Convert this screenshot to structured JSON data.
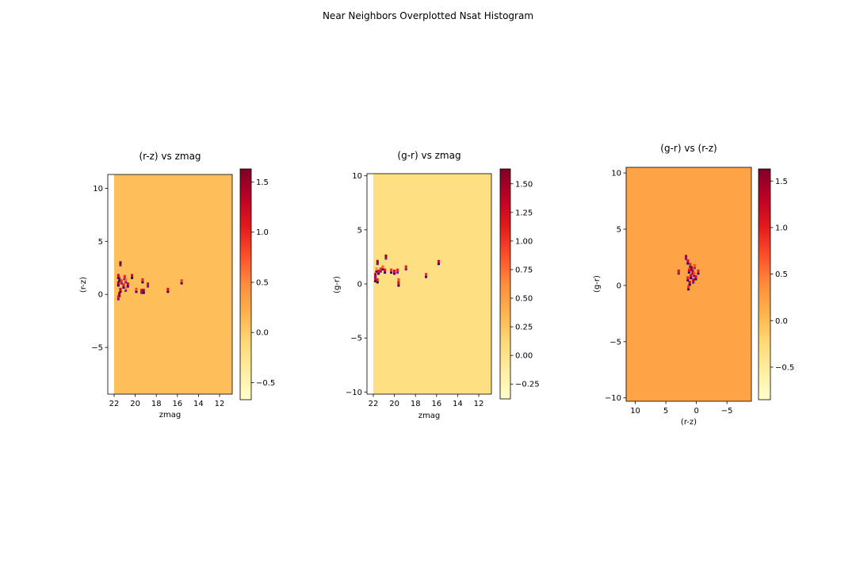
{
  "figure": {
    "suptitle": "Near Neighbors Overplotted Nsat Histogram"
  },
  "colors": {
    "cmap_YlOrRd": [
      "#ffffcc",
      "#ffeda0",
      "#fed976",
      "#feb24c",
      "#fd8d3c",
      "#fc4e2a",
      "#e31a1c",
      "#bd0026",
      "#800026"
    ],
    "point_dark": "#2b0a6e",
    "point_mid": "#6a1fa8",
    "axis": "#000000"
  },
  "chart_data": [
    {
      "type": "heatmap",
      "title": "(r-z) vs zmag",
      "xlabel": "zmag",
      "ylabel": "(r-z)",
      "xlim": [
        22.6,
        10.8
      ],
      "ylim": [
        -9.4,
        11.3
      ],
      "xticks": [
        22,
        20,
        18,
        16,
        14,
        12
      ],
      "yticks": [
        -5,
        0,
        5,
        10
      ],
      "background_value": 0.1,
      "empty_strip": [
        22.6,
        22.0
      ],
      "colorbar": {
        "min": -0.67,
        "max": 1.63,
        "ticks": [
          -0.5,
          0.0,
          0.5,
          1.0,
          1.5
        ]
      },
      "points": [
        {
          "x": 21.4,
          "y": 2.9,
          "v": 1.6
        },
        {
          "x": 21.6,
          "y": 1.7,
          "v": 1.2
        },
        {
          "x": 21.5,
          "y": 1.4,
          "v": 1.5
        },
        {
          "x": 21.3,
          "y": 1.2,
          "v": 0.9
        },
        {
          "x": 21.6,
          "y": 1.0,
          "v": 1.4
        },
        {
          "x": 21.0,
          "y": 1.6,
          "v": 1.0
        },
        {
          "x": 20.9,
          "y": 1.3,
          "v": 0.7
        },
        {
          "x": 21.1,
          "y": 0.8,
          "v": 1.1
        },
        {
          "x": 20.7,
          "y": 0.9,
          "v": 1.3
        },
        {
          "x": 20.9,
          "y": 0.5,
          "v": 0.6
        },
        {
          "x": 21.4,
          "y": 0.4,
          "v": 1.2
        },
        {
          "x": 21.5,
          "y": 0.0,
          "v": 1.5
        },
        {
          "x": 21.6,
          "y": -0.3,
          "v": 1.1
        },
        {
          "x": 20.3,
          "y": 1.7,
          "v": 1.3
        },
        {
          "x": 19.9,
          "y": 0.4,
          "v": 0.8
        },
        {
          "x": 19.4,
          "y": 0.3,
          "v": 1.2
        },
        {
          "x": 19.2,
          "y": 0.3,
          "v": 1.4
        },
        {
          "x": 19.3,
          "y": 1.3,
          "v": 1.0
        },
        {
          "x": 18.8,
          "y": 0.9,
          "v": 1.2
        },
        {
          "x": 16.9,
          "y": 0.4,
          "v": 1.1
        },
        {
          "x": 15.6,
          "y": 1.2,
          "v": 0.9
        }
      ]
    },
    {
      "type": "heatmap",
      "title": "(g-r) vs zmag",
      "xlabel": "zmag",
      "ylabel": "(g-r)",
      "xlim": [
        22.6,
        10.8
      ],
      "ylim": [
        -10.2,
        10.2
      ],
      "xticks": [
        22,
        20,
        18,
        16,
        14,
        12
      ],
      "yticks": [
        -10,
        -5,
        0,
        5,
        10
      ],
      "background_value": 0.05,
      "empty_strip": [
        22.6,
        22.0
      ],
      "colorbar": {
        "min": -0.38,
        "max": 1.63,
        "ticks": [
          -0.25,
          0.0,
          0.25,
          0.5,
          0.75,
          1.0,
          1.25,
          1.5
        ]
      },
      "points": [
        {
          "x": 21.6,
          "y": 2.0,
          "v": 1.5
        },
        {
          "x": 21.7,
          "y": 1.3,
          "v": 0.6
        },
        {
          "x": 21.5,
          "y": 1.1,
          "v": 1.2
        },
        {
          "x": 21.8,
          "y": 0.8,
          "v": 1.4
        },
        {
          "x": 21.8,
          "y": 0.4,
          "v": 1.3
        },
        {
          "x": 21.6,
          "y": 0.3,
          "v": 1.1
        },
        {
          "x": 21.3,
          "y": 1.3,
          "v": 1.0
        },
        {
          "x": 21.1,
          "y": 1.5,
          "v": 0.8
        },
        {
          "x": 20.9,
          "y": 1.2,
          "v": 1.2
        },
        {
          "x": 20.8,
          "y": 2.5,
          "v": 1.5
        },
        {
          "x": 20.3,
          "y": 1.2,
          "v": 1.0
        },
        {
          "x": 20.0,
          "y": 1.1,
          "v": 1.3
        },
        {
          "x": 19.7,
          "y": 1.2,
          "v": 1.1
        },
        {
          "x": 19.6,
          "y": 0.3,
          "v": 0.9
        },
        {
          "x": 19.6,
          "y": 0.0,
          "v": 1.2
        },
        {
          "x": 18.9,
          "y": 1.5,
          "v": 1.1
        },
        {
          "x": 17.0,
          "y": 0.8,
          "v": 1.0
        },
        {
          "x": 15.8,
          "y": 2.0,
          "v": 1.3
        }
      ]
    },
    {
      "type": "heatmap",
      "title": "(g-r) vs (r-z)",
      "xlabel": "(r-z)",
      "ylabel": "(g-r)",
      "xlim": [
        11.5,
        -9.0
      ],
      "ylim": [
        -10.3,
        10.5
      ],
      "xticks": [
        10,
        5,
        0,
        -5
      ],
      "yticks": [
        -10,
        -5,
        0,
        5,
        10
      ],
      "background_value": 0.2,
      "empty_strip": null,
      "colorbar": {
        "min": -0.85,
        "max": 1.63,
        "ticks": [
          -0.5,
          0.0,
          0.5,
          1.0,
          1.5
        ]
      },
      "points": [
        {
          "x": 1.7,
          "y": 2.5,
          "v": 1.4
        },
        {
          "x": 1.4,
          "y": 2.1,
          "v": 1.2
        },
        {
          "x": 1.0,
          "y": 1.8,
          "v": 0.9
        },
        {
          "x": 0.8,
          "y": 1.5,
          "v": 1.5
        },
        {
          "x": 1.2,
          "y": 1.3,
          "v": 1.1
        },
        {
          "x": 0.6,
          "y": 1.2,
          "v": 1.3
        },
        {
          "x": 0.4,
          "y": 1.0,
          "v": 0.8
        },
        {
          "x": 0.9,
          "y": 0.8,
          "v": 1.2
        },
        {
          "x": 1.4,
          "y": 0.6,
          "v": 1.0
        },
        {
          "x": 0.5,
          "y": 0.4,
          "v": 1.4
        },
        {
          "x": 1.1,
          "y": 0.2,
          "v": 1.3
        },
        {
          "x": 1.3,
          "y": -0.2,
          "v": 0.9
        },
        {
          "x": 2.9,
          "y": 1.2,
          "v": 1.1
        },
        {
          "x": -0.3,
          "y": 1.2,
          "v": 1.0
        },
        {
          "x": 0.1,
          "y": 0.7,
          "v": 1.2
        },
        {
          "x": 0.3,
          "y": 1.7,
          "v": 0.7
        }
      ]
    }
  ]
}
